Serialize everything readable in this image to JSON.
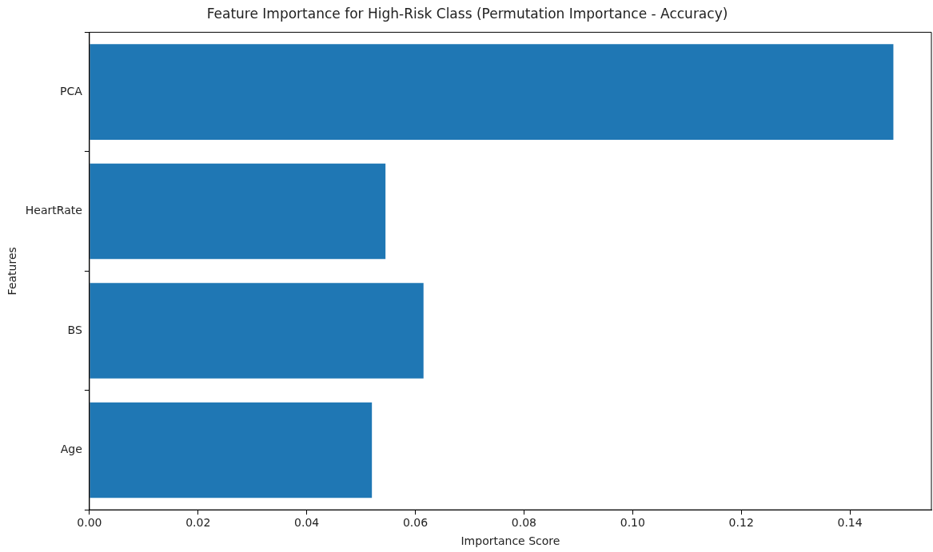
{
  "chart_data": {
    "type": "bar",
    "orientation": "horizontal",
    "title": "Feature Importance for High-Risk Class (Permutation Importance - Accuracy)",
    "xlabel": "Importance Score",
    "ylabel": "Features",
    "categories": [
      "PCA",
      "HeartRate",
      "BS",
      "Age"
    ],
    "values": [
      0.148,
      0.0545,
      0.0615,
      0.052
    ],
    "color": "#1f77b4",
    "xlim": [
      0,
      0.155
    ],
    "xticks": [
      {
        "value": 0,
        "label": "0.00"
      },
      {
        "value": 0.02,
        "label": "0.02"
      },
      {
        "value": 0.04,
        "label": "0.04"
      },
      {
        "value": 0.06,
        "label": "0.06"
      },
      {
        "value": 0.08,
        "label": "0.08"
      },
      {
        "value": 0.1,
        "label": "0.10"
      },
      {
        "value": 0.12,
        "label": "0.12"
      },
      {
        "value": 0.14,
        "label": "0.14"
      }
    ],
    "grid": false,
    "legend": false
  }
}
